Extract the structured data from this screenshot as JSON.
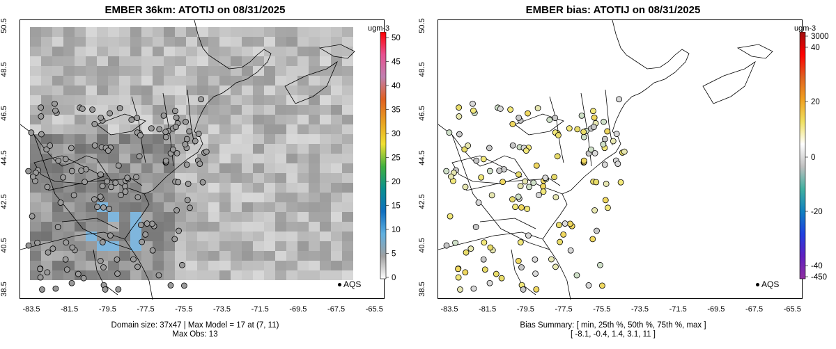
{
  "left": {
    "title": "EMBER 36km: ATOTIJ on 08/31/2025",
    "colorbar": {
      "unit": "ugm-3",
      "ticks": [
        "50",
        "45",
        "40",
        "35",
        "30",
        "25",
        "20",
        "15",
        "10",
        "5",
        "0"
      ]
    },
    "legend_label": "AQS",
    "footer_line1": "Domain size: 37x47 | Max Model = 17 at (7, 11)",
    "footer_line2": "Max Obs: 13"
  },
  "right": {
    "title": "EMBER bias: ATOTIJ on 08/31/2025",
    "colorbar": {
      "unit": "ugm-3",
      "ticks": [
        "3000",
        "40",
        "20",
        "0",
        "-20",
        "-40",
        "-450"
      ]
    },
    "legend_label": "AQS",
    "footer_line1": "Bias Summary: [ min, 25th %, 50th %, 75th %, max ]",
    "footer_line2": "[ -8.1,  -0.4,  1.4,  3.1,  11 ]"
  },
  "axes": {
    "xticks": [
      "-83.5",
      "-81.5",
      "-79.5",
      "-77.5",
      "-75.5",
      "-73.5",
      "-71.5",
      "-69.5",
      "-67.5",
      "-65.5"
    ],
    "yticks": [
      "50.5",
      "48.5",
      "46.5",
      "44.5",
      "42.5",
      "40.5",
      "38.5"
    ]
  }
}
